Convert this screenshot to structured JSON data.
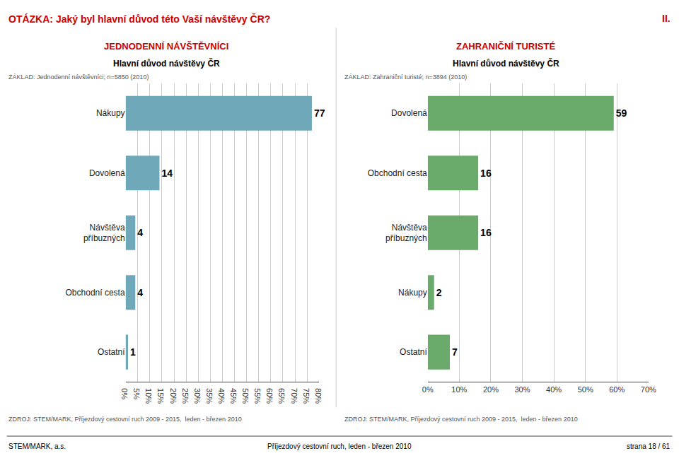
{
  "title": "OTÁZKA: Jaký byl hlavní důvod této Vaší návštěvy ČR?",
  "annotations": [
    "II.",
    "STEM/MARK, a.s.",
    "Příjezdový cestovní ruch, leden - březen 2010",
    "strana 18 / 61"
  ],
  "chart_data": [
    {
      "type": "bar",
      "orientation": "horizontal",
      "title": "JEDNODENNÍ NÁVŠTĚVNÍCI",
      "subtitle": "Hlavní důvod návštěvy ČR",
      "annotations": [
        "ZÁKLAD: Jednodenní návštěvníci; n=5850 (2010)",
        "ZDROJ: STEM/MARK, Příjezdový cestovní ruch 2009 - 2015,  leden - březen 2010"
      ],
      "categories": [
        "Nákupy",
        "Dovolená",
        "Návštěva\npříbuzných",
        "Obchodní cesta",
        "Ostatní"
      ],
      "values": [
        77,
        14,
        4,
        4,
        1
      ],
      "color": "#6fa8b8",
      "xlim": [
        0,
        80
      ],
      "xticks": [
        {
          "value": 0,
          "label": "0%"
        },
        {
          "value": 5,
          "label": "5%"
        },
        {
          "value": 10,
          "label": "10%"
        },
        {
          "value": 15,
          "label": "15%"
        },
        {
          "value": 20,
          "label": "20%"
        },
        {
          "value": 25,
          "label": "25%"
        },
        {
          "value": 30,
          "label": "30%"
        },
        {
          "value": 35,
          "label": "35%"
        },
        {
          "value": 40,
          "label": "40%"
        },
        {
          "value": 45,
          "label": "45%"
        },
        {
          "value": 50,
          "label": "50%"
        },
        {
          "value": 55,
          "label": "55%"
        },
        {
          "value": 60,
          "label": "60%"
        },
        {
          "value": 65,
          "label": "65%"
        },
        {
          "value": 70,
          "label": "70%"
        },
        {
          "value": 75,
          "label": "75%"
        },
        {
          "value": 80,
          "label": "80%"
        }
      ],
      "grid": true,
      "data_labels": true
    },
    {
      "type": "bar",
      "orientation": "horizontal",
      "title": "ZAHRANIČNÍ TURISTÉ",
      "subtitle": "Hlavní důvod návštěvy ČR",
      "annotations": [
        "ZÁKLAD: Zahraniční turisté; n=3894 (2010)",
        "ZDROJ: STEM/MARK, Příjezdový cestovní ruch 2009 - 2015,  leden - březen 2010"
      ],
      "categories": [
        "Dovolená",
        "Obchodní cesta",
        "Návštěva\npříbuzných",
        "Nákupy",
        "Ostatní"
      ],
      "values": [
        59,
        16,
        16,
        2,
        7
      ],
      "color": "#6aaa6a",
      "xlim": [
        0,
        70
      ],
      "xticks": [
        {
          "value": 0,
          "label": "0%"
        },
        {
          "value": 10,
          "label": "10%"
        },
        {
          "value": 20,
          "label": "20%"
        },
        {
          "value": 30,
          "label": "30%"
        },
        {
          "value": 40,
          "label": "40%"
        },
        {
          "value": 50,
          "label": "50%"
        },
        {
          "value": 60,
          "label": "60%"
        },
        {
          "value": 70,
          "label": "70%"
        }
      ],
      "grid": true,
      "data_labels": true
    }
  ]
}
